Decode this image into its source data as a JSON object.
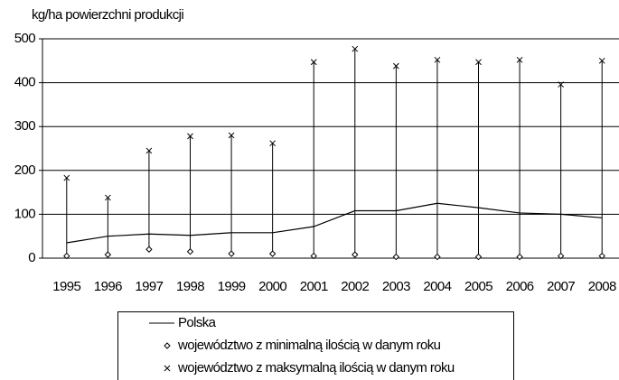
{
  "chart_data": {
    "type": "line",
    "ylabel": "kg/ha powierzchni produkcji",
    "categories": [
      "1995",
      "1996",
      "1997",
      "1998",
      "1999",
      "2000",
      "2001",
      "2002",
      "2003",
      "2004",
      "2005",
      "2006",
      "2007",
      "2008"
    ],
    "series": [
      {
        "name": "Polska",
        "color": "#000000",
        "style": "line",
        "values": [
          35,
          50,
          55,
          52,
          58,
          58,
          72,
          108,
          108,
          125,
          115,
          103,
          100,
          92
        ]
      },
      {
        "name": "województwo z minimalną ilością w danym roku",
        "color": "#000000",
        "style": "diamond",
        "values": [
          5,
          8,
          20,
          15,
          10,
          10,
          5,
          8,
          3,
          3,
          3,
          3,
          5,
          5
        ]
      },
      {
        "name": "województwo z maksymalną ilością w danym roku",
        "color": "#000000",
        "style": "cross",
        "values": [
          183,
          138,
          245,
          278,
          280,
          262,
          447,
          477,
          438,
          452,
          447,
          452,
          396,
          450
        ]
      }
    ],
    "high_low_lines": true,
    "ylim": [
      0,
      500
    ],
    "yticks": [
      0,
      100,
      200,
      300,
      400,
      500
    ],
    "grid": true
  }
}
